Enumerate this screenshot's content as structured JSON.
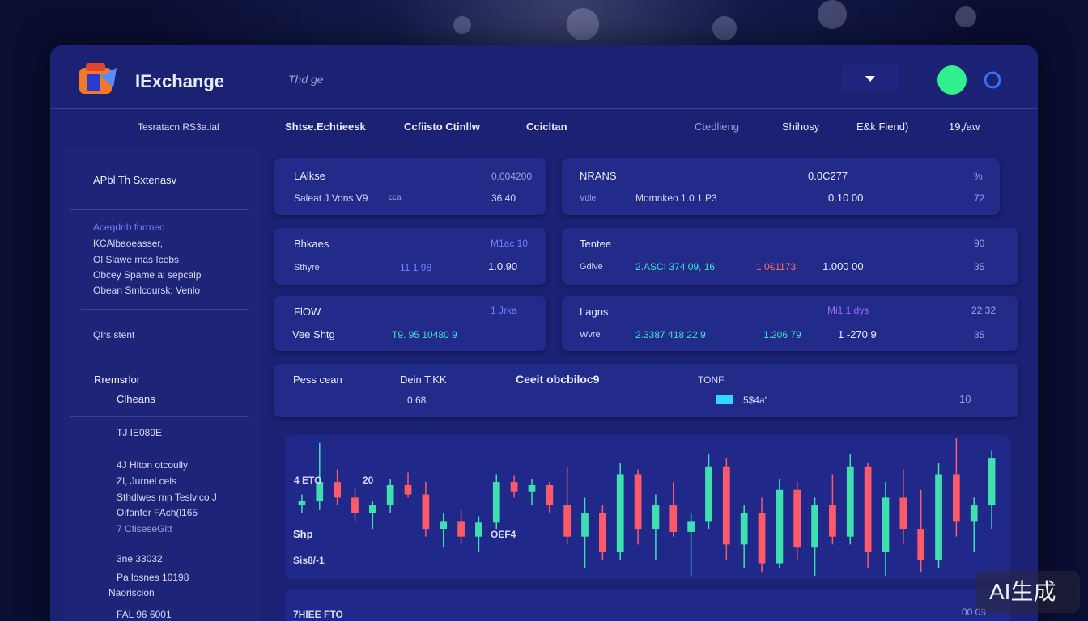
{
  "header": {
    "logo": "IExchange",
    "search": "Thd ge"
  },
  "nav": [
    "Tesratacn RS3a.ial",
    "Shtse.Echtieesk",
    "Ccfiisto Ctinllw",
    "Ccicltan",
    "Ctedlieng",
    "Shihosy",
    "E&k Fiend)",
    "19,/aw"
  ],
  "sidebar": {
    "title": "APbl Th Sxtenasv",
    "section1": [
      "Aceqdnb forrnec",
      "KCAlbaoeasser,",
      "Ol Slawe mas Icebs",
      "Obcey Spame al sepcalp",
      "Obean Smlcoursk: Venlo"
    ],
    "section2": "Qlrs stent",
    "section3": [
      "Rremsrlor",
      "Clheans"
    ],
    "section4": [
      "TJ IE089E",
      "4J Hiton otcoully",
      "Zl, Jurnel cels",
      "Sthdlwes mn Teslvico J",
      "Oifanfer FAch(l165",
      "7 CfiseseGitt",
      "3ne 33032",
      "Pa losnes 10198",
      "Naoriscion",
      "FAL 96 6001"
    ]
  },
  "cards": [
    [
      "LAlkse",
      "0.004200",
      "Saleat J Vons V9",
      "cca",
      "36 40"
    ],
    [
      "NRANS",
      "0.0C277",
      "%",
      "Vdle",
      "Momnkeo 1.0 1 P3",
      "0.10 00",
      "72"
    ],
    [
      "Bhkaes",
      "M1ac 10",
      "Sthyre",
      "11 1 98",
      "1.0.90"
    ],
    [
      "Tentee",
      "90",
      "Gdive",
      "2.ASCI 374 09, 16",
      "1 0€1173",
      "1.000 00",
      "35"
    ],
    [
      "FlOW",
      "1 Jrka",
      "Vee Shtg",
      "T9. 95 10480 9"
    ],
    [
      "Lagns",
      "Mi1 1 dys",
      "22 32",
      "Wvre",
      "2.3387 418 22 9",
      "1.206 79",
      "1 -270 9",
      "35"
    ]
  ],
  "info_bar": [
    "Pess cean",
    "Dein T.KK",
    "0.68",
    "Ceeit obcbiloc9",
    "TONF",
    "5$4a'",
    "10"
  ],
  "chart": {
    "type": "candlestick",
    "labels": [
      "4 ETO",
      "20",
      "Shp",
      "Sis8/-1",
      "OEF4"
    ],
    "up_color": "#3fe0b0",
    "down_color": "#ff5a6a",
    "candles": [
      [
        55,
        62,
        50,
        58
      ],
      [
        58,
        95,
        52,
        70
      ],
      [
        70,
        78,
        55,
        60
      ],
      [
        60,
        66,
        45,
        50
      ],
      [
        50,
        58,
        40,
        55
      ],
      [
        55,
        72,
        50,
        68
      ],
      [
        68,
        76,
        60,
        62
      ],
      [
        62,
        70,
        35,
        40
      ],
      [
        40,
        50,
        28,
        45
      ],
      [
        45,
        52,
        30,
        35
      ],
      [
        35,
        48,
        25,
        44
      ],
      [
        44,
        75,
        40,
        70
      ],
      [
        70,
        74,
        60,
        64
      ],
      [
        64,
        72,
        55,
        68
      ],
      [
        68,
        70,
        50,
        55
      ],
      [
        55,
        80,
        30,
        35
      ],
      [
        35,
        60,
        15,
        50
      ],
      [
        50,
        55,
        20,
        25
      ],
      [
        25,
        82,
        20,
        75
      ],
      [
        75,
        78,
        30,
        40
      ],
      [
        40,
        62,
        20,
        55
      ],
      [
        55,
        70,
        35,
        38
      ],
      [
        38,
        50,
        10,
        45
      ],
      [
        45,
        88,
        40,
        80
      ],
      [
        80,
        85,
        20,
        30
      ],
      [
        30,
        55,
        15,
        50
      ],
      [
        50,
        60,
        12,
        18
      ],
      [
        18,
        72,
        15,
        65
      ],
      [
        65,
        70,
        20,
        28
      ],
      [
        28,
        60,
        10,
        55
      ],
      [
        55,
        75,
        30,
        35
      ],
      [
        35,
        88,
        30,
        80
      ],
      [
        80,
        82,
        15,
        25
      ],
      [
        25,
        70,
        10,
        60
      ],
      [
        60,
        78,
        30,
        40
      ],
      [
        40,
        65,
        12,
        20
      ],
      [
        20,
        82,
        15,
        75
      ],
      [
        75,
        98,
        35,
        45
      ],
      [
        45,
        60,
        25,
        55
      ],
      [
        55,
        90,
        40,
        85
      ]
    ]
  },
  "footer": [
    "7HIEE FTO",
    "00 09"
  ],
  "watermark": "AI生成"
}
